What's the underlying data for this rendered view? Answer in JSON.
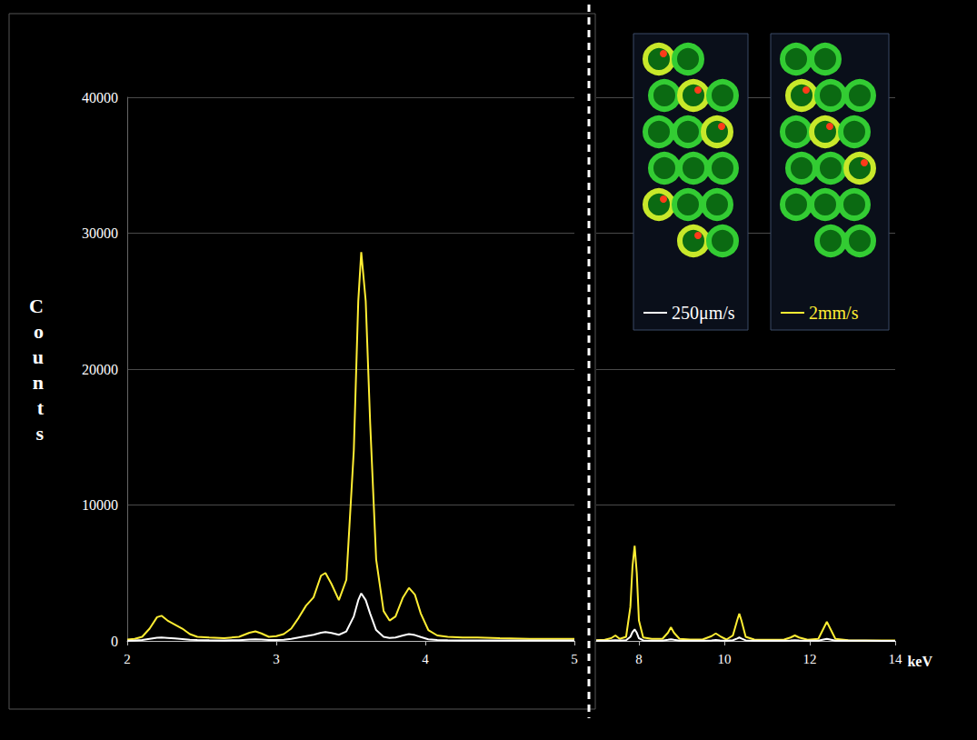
{
  "chart_data": [
    {
      "type": "line",
      "y_label": "Counts",
      "xlim": [
        2,
        5
      ],
      "xticks": [
        2,
        3,
        4,
        5
      ],
      "ylim": [
        0,
        40000
      ],
      "yticks": [
        0,
        10000,
        20000,
        30000,
        40000
      ],
      "grid": true,
      "x": [
        2.0,
        2.05,
        2.1,
        2.15,
        2.2,
        2.23,
        2.27,
        2.32,
        2.37,
        2.42,
        2.47,
        2.55,
        2.65,
        2.75,
        2.82,
        2.86,
        2.9,
        2.95,
        3.0,
        3.05,
        3.1,
        3.15,
        3.2,
        3.25,
        3.3,
        3.33,
        3.37,
        3.42,
        3.47,
        3.52,
        3.55,
        3.57,
        3.6,
        3.63,
        3.67,
        3.72,
        3.76,
        3.8,
        3.85,
        3.89,
        3.93,
        3.97,
        4.02,
        4.08,
        4.15,
        4.25,
        4.35,
        4.5,
        4.7,
        4.85,
        5.0
      ],
      "series": [
        {
          "name": "2mm/s",
          "color": "#ffee33",
          "values": [
            100,
            150,
            300,
            900,
            1750,
            1850,
            1500,
            1200,
            900,
            500,
            300,
            250,
            200,
            300,
            600,
            700,
            550,
            300,
            350,
            500,
            900,
            1700,
            2600,
            3200,
            4800,
            5000,
            4200,
            3000,
            4500,
            14000,
            25000,
            28600,
            25000,
            16000,
            6000,
            2200,
            1500,
            1800,
            3200,
            3900,
            3400,
            2000,
            800,
            400,
            300,
            250,
            250,
            200,
            150,
            150,
            150
          ]
        },
        {
          "name": "250μm/s",
          "color": "#ffffff",
          "values": [
            20,
            30,
            60,
            150,
            240,
            250,
            220,
            180,
            140,
            90,
            60,
            50,
            40,
            50,
            100,
            120,
            100,
            60,
            60,
            80,
            150,
            250,
            350,
            450,
            600,
            650,
            580,
            450,
            700,
            1800,
            3000,
            3500,
            3000,
            2000,
            800,
            300,
            220,
            250,
            400,
            500,
            430,
            280,
            120,
            70,
            50,
            40,
            40,
            30,
            30,
            30,
            30
          ]
        }
      ]
    },
    {
      "type": "line",
      "x_label": "keV",
      "xlim": [
        7,
        14
      ],
      "xticks": [
        8,
        10,
        12,
        14
      ],
      "ylim": [
        0,
        40000
      ],
      "yticks": [
        0,
        10000,
        20000,
        30000,
        40000
      ],
      "grid": true,
      "legend": "top-right",
      "x": [
        7.0,
        7.2,
        7.35,
        7.45,
        7.55,
        7.7,
        7.8,
        7.85,
        7.9,
        7.95,
        8.0,
        8.1,
        8.3,
        8.55,
        8.68,
        8.75,
        8.82,
        8.95,
        9.2,
        9.5,
        9.7,
        9.8,
        9.9,
        10.05,
        10.2,
        10.3,
        10.35,
        10.4,
        10.5,
        10.7,
        11.0,
        11.4,
        11.55,
        11.65,
        11.75,
        11.95,
        12.2,
        12.32,
        12.4,
        12.48,
        12.6,
        12.9,
        13.3,
        13.7,
        14.0
      ],
      "series": [
        {
          "name": "2mm/s",
          "color": "#ffee33",
          "values": [
            50,
            80,
            200,
            400,
            150,
            300,
            2500,
            5500,
            7000,
            5000,
            1500,
            250,
            150,
            150,
            600,
            1000,
            600,
            150,
            100,
            120,
            350,
            550,
            350,
            100,
            400,
            1500,
            2000,
            1500,
            300,
            100,
            80,
            100,
            250,
            400,
            250,
            80,
            150,
            900,
            1400,
            900,
            150,
            50,
            40,
            30,
            30
          ]
        },
        {
          "name": "250μm/s",
          "color": "#ffffff",
          "values": [
            10,
            15,
            30,
            50,
            30,
            50,
            300,
            650,
            850,
            600,
            200,
            40,
            20,
            20,
            80,
            120,
            80,
            20,
            15,
            15,
            40,
            60,
            40,
            15,
            50,
            180,
            250,
            180,
            40,
            15,
            10,
            15,
            30,
            50,
            30,
            10,
            20,
            100,
            150,
            100,
            20,
            10,
            10,
            5,
            5
          ]
        }
      ]
    }
  ]
}
